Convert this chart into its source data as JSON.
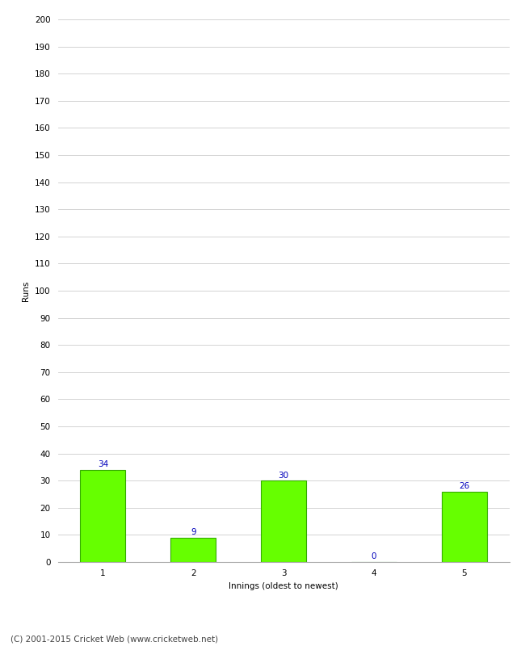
{
  "xlabel": "Innings (oldest to newest)",
  "ylabel": "Runs",
  "categories": [
    1,
    2,
    3,
    4,
    5
  ],
  "values": [
    34,
    9,
    30,
    0,
    26
  ],
  "bar_color": "#66ff00",
  "bar_edge_color": "#33aa00",
  "ylim": [
    0,
    200
  ],
  "ytick_step": 10,
  "annotation_color": "#0000bb",
  "annotation_fontsize": 7.5,
  "axis_label_fontsize": 7.5,
  "tick_fontsize": 7.5,
  "footer": "(C) 2001-2015 Cricket Web (www.cricketweb.net)",
  "footer_fontsize": 7.5,
  "background_color": "#ffffff",
  "grid_color": "#cccccc",
  "bar_width": 0.5
}
